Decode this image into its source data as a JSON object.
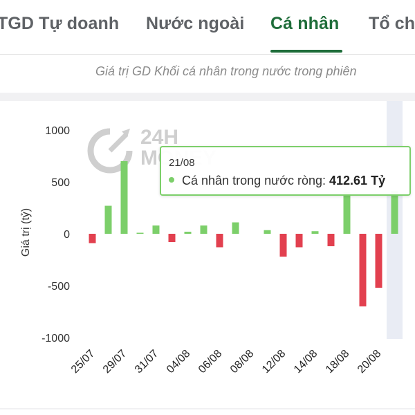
{
  "tabs": [
    {
      "label": "TGD Tự doanh",
      "active": false
    },
    {
      "label": "Nước ngoài",
      "active": false
    },
    {
      "label": "Cá nhân",
      "active": true
    },
    {
      "label": "Tổ chức",
      "active": false
    }
  ],
  "subtitle": "Giá trị GD Khối cá nhân trong nước trong phiên",
  "watermark": {
    "line1": "24H",
    "line2": "MONEY"
  },
  "tooltip": {
    "date": "21/08",
    "series_label": "Cá nhân trong nước ròng:",
    "value": "412.61 Tỷ"
  },
  "colors": {
    "positive": "#7ccf6a",
    "negative": "#e2404f",
    "active_tab": "#1f6d3a",
    "highlight_band": "#e9ecf4"
  },
  "chart_data": {
    "type": "bar",
    "ylabel": "Giá trị (tỷ)",
    "ylim": [
      -1000,
      1000
    ],
    "yticks": [
      1000,
      500,
      0,
      -500,
      -1000
    ],
    "grid": false,
    "categories": [
      "25/07",
      "26/07",
      "29/07",
      "30/07",
      "31/07",
      "01/08",
      "04/08",
      "05/08",
      "06/08",
      "07/08",
      "08/08",
      "09/08",
      "12/08",
      "13/08",
      "14/08",
      "15/08",
      "18/08",
      "19/08",
      "20/08",
      "21/08"
    ],
    "shown_tick_labels": [
      "25/07",
      "29/07",
      "31/07",
      "04/08",
      "06/08",
      "08/08",
      "12/08",
      "14/08",
      "18/08",
      "20/08"
    ],
    "values": [
      -90,
      270,
      700,
      10,
      80,
      -80,
      20,
      80,
      -130,
      110,
      0,
      35,
      -220,
      -130,
      25,
      -120,
      400,
      -700,
      -520,
      412.61
    ],
    "highlighted_category": "21/08"
  }
}
